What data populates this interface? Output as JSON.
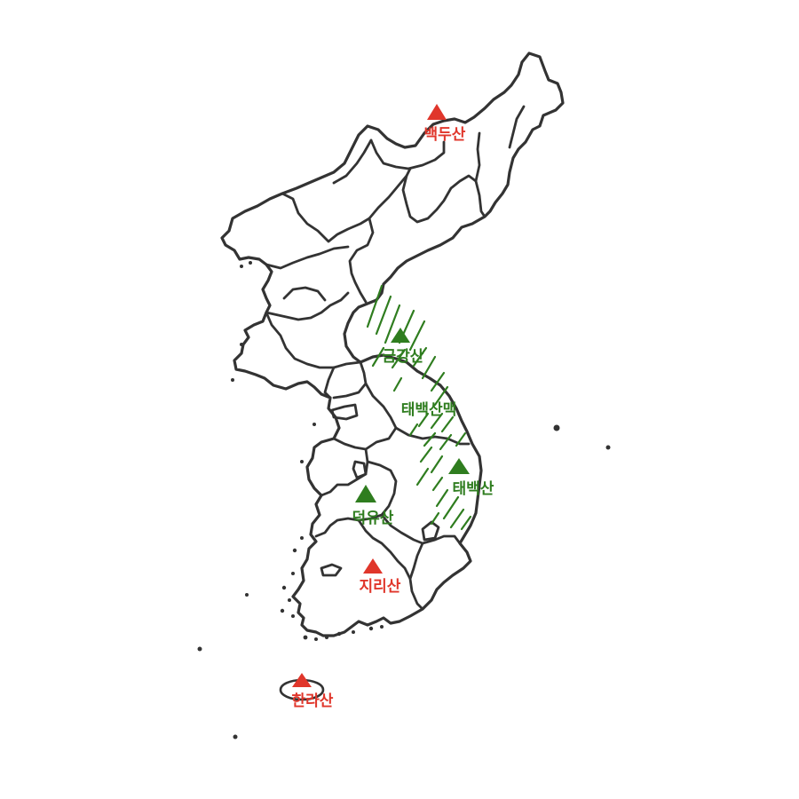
{
  "colors": {
    "outline": "#333333",
    "famous_mountain": "#e0362b",
    "range_mountain": "#2f7d1f",
    "hatch": "#2f7d1f"
  },
  "mountains": [
    {
      "label": "백두산",
      "color": "#e0362b",
      "icon": "triangle-icon"
    },
    {
      "label": "금강산",
      "color": "#2f7d1f",
      "icon": "triangle-icon"
    },
    {
      "label": "태백산",
      "color": "#2f7d1f",
      "icon": "triangle-icon"
    },
    {
      "label": "덕유산",
      "color": "#2f7d1f",
      "icon": "triangle-icon"
    },
    {
      "label": "지리산",
      "color": "#e0362b",
      "icon": "triangle-icon"
    },
    {
      "label": "한라산",
      "color": "#e0362b",
      "icon": "triangle-icon"
    }
  ],
  "range": {
    "label": "태백산맥",
    "color": "#2f7d1f",
    "pattern": "diagonal-hatch"
  }
}
